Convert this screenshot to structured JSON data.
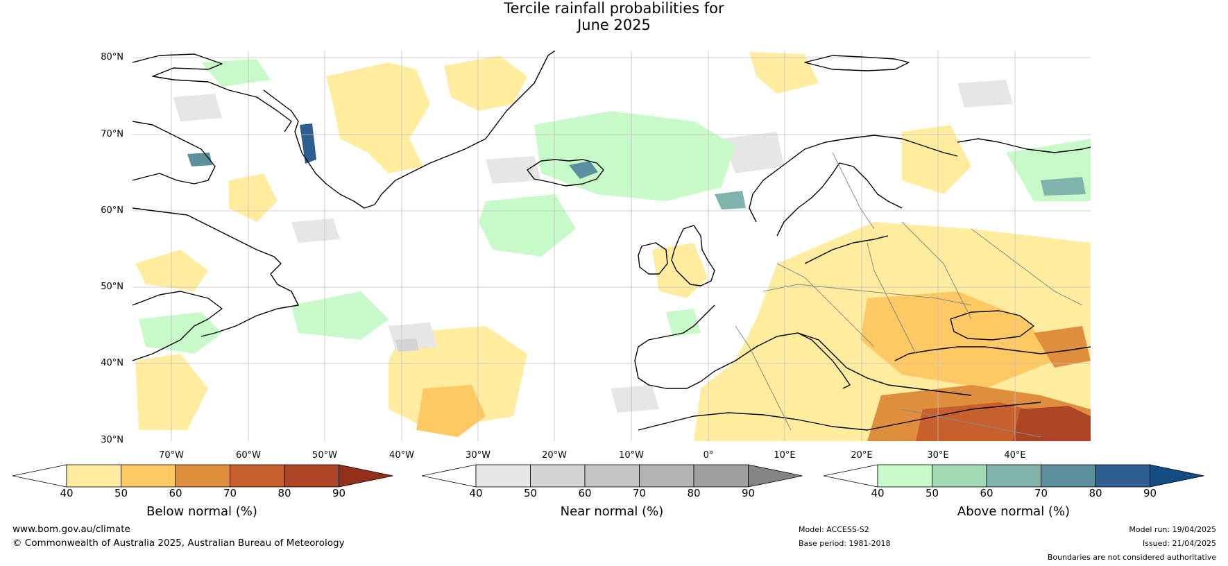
{
  "title": {
    "line1": "Tercile rainfall probabilities for",
    "line2": "June 2025"
  },
  "map": {
    "lat_labels": [
      "80°N",
      "70°N",
      "60°N",
      "50°N",
      "40°N",
      "30°N"
    ],
    "lon_labels": [
      "70°W",
      "60°W",
      "50°W",
      "40°W",
      "30°W",
      "20°W",
      "10°W",
      "0°",
      "10°E",
      "20°E",
      "30°E",
      "40°E"
    ],
    "colors": {
      "ocean": "#ffffff",
      "land_outline": "#000000",
      "border": "#888888",
      "grid": "#bfbfbf"
    }
  },
  "colorbars": [
    {
      "label": "Below normal (%)",
      "ticks": [
        "40",
        "50",
        "60",
        "70",
        "80",
        "90"
      ],
      "colors": [
        "#ffffff",
        "#ffec9e",
        "#fec863",
        "#df8e3e",
        "#c95f2c",
        "#ad4627",
        "#933019"
      ]
    },
    {
      "label": "Near normal (%)",
      "ticks": [
        "40",
        "50",
        "60",
        "70",
        "80",
        "90"
      ],
      "colors": [
        "#ffffff",
        "#e6e6e6",
        "#d4d4d4",
        "#c4c4c4",
        "#b3b3b3",
        "#9f9f9f",
        "#848484"
      ]
    },
    {
      "label": "Above normal (%)",
      "ticks": [
        "40",
        "50",
        "60",
        "70",
        "80",
        "90"
      ],
      "colors": [
        "#ffffff",
        "#c8fac9",
        "#a3d8b4",
        "#80b3ac",
        "#5b909f",
        "#2d5f90",
        "#134b83"
      ]
    }
  ],
  "footer": {
    "website": "www.bom.gov.au/climate",
    "copyright": "© Commonwealth of Australia 2025, Australian Bureau of Meteorology",
    "model": "Model: ACCESS-S2",
    "base_period": "Base period: 1981-2018",
    "model_run": "Model run: 19/04/2025",
    "issued": "Issued: 21/04/2025",
    "disclaimer": "Boundaries are not considered authoritative"
  }
}
